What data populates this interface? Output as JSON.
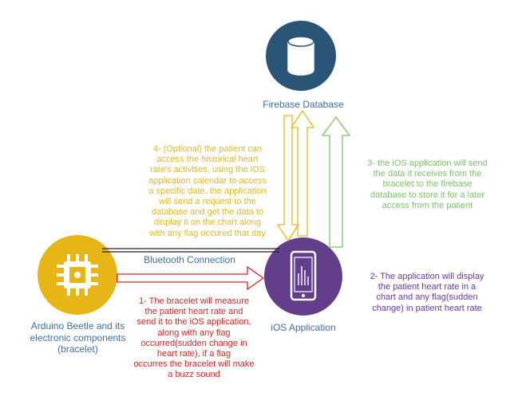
{
  "colors": {
    "firebase_node": "#2b5576",
    "arduino_node": "#e8b517",
    "ios_node": "#633f8b",
    "firebase_text": "#3d6fa8",
    "arduino_text": "#3d6fa8",
    "ios_text": "#3d6fa8",
    "bluetooth_text": "#3d6fa8",
    "step1": "#e02020",
    "step2": "#6a33b0",
    "step3": "#7cc46a",
    "step4": "#e6b820",
    "connection_line": "#222222"
  },
  "icons": {
    "firebase": "database-icon",
    "arduino": "chip-icon",
    "ios": "smartphone-icon"
  },
  "nodes": {
    "firebase_label": "Firebase Database",
    "arduino_label": "Arduino Beetle and its\nelectronic components\n(bracelet)",
    "ios_label": "iOS Application"
  },
  "connections": {
    "bluetooth_label": "Bluetooth Connection"
  },
  "steps": {
    "step1": "1- The bracelet will measure\nthe patient heart rate and\nsend it to the iOS application,\nalong with any flag\noccurred(sudden change in\nheart rate), if a flag\noccurres the bracelet will make\na buzz sound",
    "step2": "2- The application will display\nthe patient heart rate in a\nchart and any flag(sudden\nchange) in patient heart rate",
    "step3": "3- the iOS application will send\nthe data it receives from the\nbracelet to the firebase\ndatabase to store it for a later\naccess from the patient",
    "step4": "4- (Optional) the patient can\naccess the historical heart\nrate's activities, using the iOS\napplication calendar to access\na specific date, the application\nwill send a request to the\ndatabase and get the data to\ndisplay it on the chart along\nwith any flag occured that day"
  }
}
